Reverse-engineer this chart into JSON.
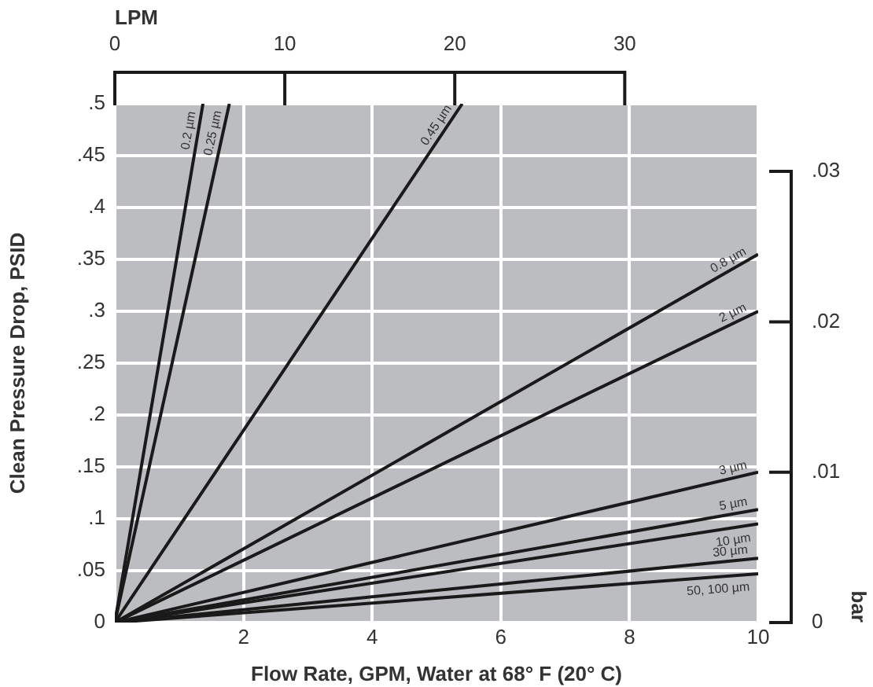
{
  "chart_data": {
    "type": "line",
    "xlabel": "Flow Rate, GPM, Water at 68° F (20° C)",
    "ylabel": "Clean Pressure Drop, PSID",
    "x2label": "LPM",
    "y2label": "bar",
    "series": [
      {
        "name": "0.2 µm",
        "color": "#1a1a1a",
        "x": [
          0,
          1.37
        ],
        "values": [
          0,
          0.5
        ]
      },
      {
        "name": "0.25 µm",
        "color": "#1a1a1a",
        "x": [
          0,
          1.78
        ],
        "values": [
          0,
          0.5
        ]
      },
      {
        "name": "0.45 µm",
        "color": "#1a1a1a",
        "x": [
          0,
          5.4
        ],
        "values": [
          0,
          0.5
        ]
      },
      {
        "name": "0.8 µm",
        "color": "#1a1a1a",
        "x": [
          0,
          10
        ],
        "values": [
          0,
          0.355
        ]
      },
      {
        "name": "2 µm",
        "color": "#1a1a1a",
        "x": [
          0,
          10
        ],
        "values": [
          0,
          0.3
        ]
      },
      {
        "name": "3 µm",
        "color": "#1a1a1a",
        "x": [
          0,
          10
        ],
        "values": [
          0,
          0.145
        ]
      },
      {
        "name": "5 µm",
        "color": "#1a1a1a",
        "x": [
          0,
          10
        ],
        "values": [
          0,
          0.109
        ]
      },
      {
        "name": "10 µm",
        "color": "#1a1a1a",
        "x": [
          0,
          10
        ],
        "values": [
          0,
          0.095
        ]
      },
      {
        "name": "30 µm",
        "color": "#1a1a1a",
        "x": [
          0,
          10
        ],
        "values": [
          0,
          0.062
        ]
      },
      {
        "name": "50, 100 µm",
        "color": "#1a1a1a",
        "x": [
          0,
          10
        ],
        "values": [
          0,
          0.047
        ]
      }
    ],
    "xlim": [
      0,
      10
    ],
    "xticks": [
      {
        "value": 0,
        "label": null
      },
      2,
      4,
      6,
      8,
      10
    ],
    "ylim": [
      0,
      0.5
    ],
    "yticks": [
      0,
      {
        "value": 0.05,
        "label": ".05"
      },
      {
        "value": 0.1,
        "label": ".1"
      },
      {
        "value": 0.15,
        "label": ".15"
      },
      {
        "value": 0.2,
        "label": ".2"
      },
      {
        "value": 0.25,
        "label": ".25"
      },
      {
        "value": 0.3,
        "label": ".3"
      },
      {
        "value": 0.35,
        "label": ".35"
      },
      {
        "value": 0.4,
        "label": ".4"
      },
      {
        "value": 0.45,
        "label": ".45"
      },
      {
        "value": 0.5,
        "label": ".5"
      }
    ],
    "x2lim": [
      0,
      37.85
    ],
    "x2ticks": [
      0,
      10,
      20,
      30
    ],
    "y2lim": [
      0,
      0.0345
    ],
    "y2ticks": [
      0,
      {
        "value": 0.01,
        "label": ".01"
      },
      {
        "value": 0.02,
        "label": ".02"
      },
      {
        "value": 0.03,
        "label": ".03"
      }
    ],
    "grid": true,
    "legend": false,
    "marker": "none",
    "line_style": "solid"
  }
}
